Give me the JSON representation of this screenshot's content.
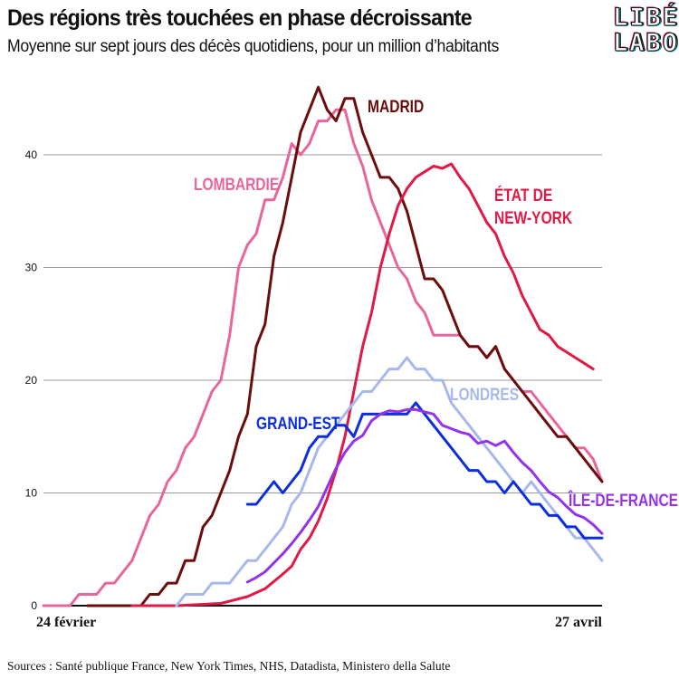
{
  "header": {
    "title": "Des régions très touchées en phase décroissante",
    "subtitle": "Moyenne sur sept jours des décès quotidiens, pour un million d’habitants"
  },
  "logo": {
    "line1": "LIBÉ",
    "line2": "LABO"
  },
  "footer": {
    "sources": "Sources : Santé publique France, New York Times, NHS, Datadista, Ministero della Salute"
  },
  "chart_data": {
    "type": "line",
    "title": "Des régions très touchées en phase décroissante",
    "subtitle": "Moyenne sur sept jours des décès quotidiens, pour un million d’habitants",
    "x_ticks": [
      {
        "day": 0,
        "label": "24 février"
      },
      {
        "day": 63,
        "label": "27 avril"
      }
    ],
    "y_ticks": [
      0,
      10,
      20,
      30,
      40
    ],
    "xlim": [
      0,
      63
    ],
    "ylim": [
      0,
      46
    ],
    "grid": true,
    "series": [
      {
        "name": "LOMBARDIE",
        "color": "#e8669c",
        "points": [
          [
            0,
            0
          ],
          [
            3,
            0
          ],
          [
            4,
            1
          ],
          [
            6,
            1
          ],
          [
            7,
            2
          ],
          [
            8,
            2
          ],
          [
            9,
            3
          ],
          [
            10,
            4
          ],
          [
            11,
            6
          ],
          [
            12,
            8
          ],
          [
            13,
            9
          ],
          [
            14,
            11
          ],
          [
            15,
            12
          ],
          [
            16,
            14
          ],
          [
            17,
            15
          ],
          [
            18,
            17
          ],
          [
            19,
            19
          ],
          [
            20,
            20
          ],
          [
            21,
            24
          ],
          [
            22,
            30
          ],
          [
            23,
            32
          ],
          [
            24,
            33
          ],
          [
            25,
            36
          ],
          [
            26,
            36
          ],
          [
            27,
            38
          ],
          [
            28,
            41
          ],
          [
            29,
            40
          ],
          [
            30,
            41
          ],
          [
            31,
            43
          ],
          [
            32,
            43
          ],
          [
            33,
            44
          ],
          [
            34,
            44
          ],
          [
            35,
            41
          ],
          [
            36,
            39
          ],
          [
            37,
            36
          ],
          [
            38,
            34
          ],
          [
            39,
            32
          ],
          [
            40,
            30
          ],
          [
            41,
            29
          ],
          [
            42,
            27
          ],
          [
            43,
            26
          ],
          [
            44,
            24
          ],
          [
            45,
            24
          ],
          [
            46,
            24
          ],
          [
            47,
            24
          ],
          [
            48,
            23
          ],
          [
            49,
            23
          ],
          [
            50,
            22
          ],
          [
            51,
            23
          ],
          [
            52,
            21
          ],
          [
            53,
            20
          ],
          [
            54,
            19
          ],
          [
            55,
            19
          ],
          [
            56,
            18
          ],
          [
            57,
            17
          ],
          [
            58,
            16
          ],
          [
            59,
            15
          ],
          [
            60,
            14
          ],
          [
            61,
            14
          ],
          [
            62,
            13
          ],
          [
            63,
            11
          ]
        ]
      },
      {
        "name": "MADRID",
        "color": "#6b0d0d",
        "points": [
          [
            5,
            0
          ],
          [
            11,
            0
          ],
          [
            12,
            1
          ],
          [
            13,
            1
          ],
          [
            14,
            2
          ],
          [
            15,
            2
          ],
          [
            16,
            4
          ],
          [
            17,
            4
          ],
          [
            18,
            7
          ],
          [
            19,
            8
          ],
          [
            20,
            10
          ],
          [
            21,
            12
          ],
          [
            22,
            15
          ],
          [
            23,
            17
          ],
          [
            24,
            23
          ],
          [
            25,
            25
          ],
          [
            26,
            31
          ],
          [
            27,
            34
          ],
          [
            28,
            38
          ],
          [
            29,
            42
          ],
          [
            30,
            44
          ],
          [
            31,
            46
          ],
          [
            32,
            44
          ],
          [
            33,
            43
          ],
          [
            34,
            45
          ],
          [
            35,
            45
          ],
          [
            36,
            42
          ],
          [
            37,
            40
          ],
          [
            38,
            38
          ],
          [
            39,
            38
          ],
          [
            40,
            37
          ],
          [
            41,
            35
          ],
          [
            42,
            32
          ],
          [
            43,
            29
          ],
          [
            44,
            29
          ],
          [
            45,
            28
          ],
          [
            46,
            26
          ],
          [
            47,
            24
          ],
          [
            48,
            23
          ],
          [
            49,
            23
          ],
          [
            50,
            22
          ],
          [
            51,
            23
          ],
          [
            52,
            21
          ],
          [
            53,
            20
          ],
          [
            54,
            19
          ],
          [
            55,
            18
          ],
          [
            56,
            17
          ],
          [
            57,
            16
          ],
          [
            58,
            15
          ],
          [
            59,
            15
          ],
          [
            60,
            14
          ],
          [
            61,
            13
          ],
          [
            62,
            12
          ],
          [
            63,
            11
          ]
        ]
      },
      {
        "name": "ÉTAT DE NEW-YORK",
        "color": "#e01a45",
        "points": [
          [
            10,
            0
          ],
          [
            15,
            0
          ],
          [
            20,
            0.2
          ],
          [
            23,
            0.8
          ],
          [
            25,
            1.5
          ],
          [
            27,
            2.8
          ],
          [
            28,
            3.5
          ],
          [
            29,
            5
          ],
          [
            30,
            6
          ],
          [
            31,
            7.5
          ],
          [
            32,
            9.5
          ],
          [
            33,
            12
          ],
          [
            34,
            15
          ],
          [
            35,
            19
          ],
          [
            36,
            23
          ],
          [
            37,
            26
          ],
          [
            38,
            30
          ],
          [
            39,
            33
          ],
          [
            40,
            35.5
          ],
          [
            41,
            37
          ],
          [
            42,
            38
          ],
          [
            43,
            38.5
          ],
          [
            44,
            39
          ],
          [
            45,
            38.8
          ],
          [
            46,
            39.2
          ],
          [
            47,
            38
          ],
          [
            48,
            37
          ],
          [
            49,
            35.5
          ],
          [
            50,
            34
          ],
          [
            51,
            33
          ],
          [
            52,
            31
          ],
          [
            53,
            29.5
          ],
          [
            54,
            27.5
          ],
          [
            55,
            26
          ],
          [
            56,
            24.5
          ],
          [
            57,
            24
          ],
          [
            58,
            23
          ],
          [
            59,
            22.5
          ],
          [
            60,
            22
          ],
          [
            61,
            21.5
          ],
          [
            62,
            21
          ]
        ]
      },
      {
        "name": "LONDRES",
        "color": "#a7b8ec",
        "points": [
          [
            15,
            0
          ],
          [
            16,
            1
          ],
          [
            17,
            1
          ],
          [
            18,
            1
          ],
          [
            19,
            2
          ],
          [
            20,
            2
          ],
          [
            21,
            2
          ],
          [
            22,
            3
          ],
          [
            23,
            4
          ],
          [
            24,
            4
          ],
          [
            25,
            5
          ],
          [
            26,
            6
          ],
          [
            27,
            7
          ],
          [
            28,
            9
          ],
          [
            29,
            10
          ],
          [
            30,
            12
          ],
          [
            31,
            14
          ],
          [
            32,
            15
          ],
          [
            33,
            16
          ],
          [
            34,
            17
          ],
          [
            35,
            18
          ],
          [
            36,
            19
          ],
          [
            37,
            19
          ],
          [
            38,
            20
          ],
          [
            39,
            21
          ],
          [
            40,
            21
          ],
          [
            41,
            22
          ],
          [
            42,
            21
          ],
          [
            43,
            21
          ],
          [
            44,
            20
          ],
          [
            45,
            20
          ],
          [
            46,
            18
          ],
          [
            47,
            17
          ],
          [
            48,
            16
          ],
          [
            49,
            15
          ],
          [
            50,
            14
          ],
          [
            51,
            13
          ],
          [
            52,
            12
          ],
          [
            53,
            11
          ],
          [
            54,
            10
          ],
          [
            55,
            11
          ],
          [
            56,
            10
          ],
          [
            57,
            9
          ],
          [
            58,
            8
          ],
          [
            59,
            7
          ],
          [
            60,
            6
          ],
          [
            61,
            6
          ],
          [
            62,
            5
          ],
          [
            63,
            4
          ]
        ]
      },
      {
        "name": "GRAND-EST",
        "color": "#0a2ee0",
        "points": [
          [
            23,
            9
          ],
          [
            24,
            9
          ],
          [
            25,
            10
          ],
          [
            26,
            11
          ],
          [
            27,
            10
          ],
          [
            28,
            11
          ],
          [
            29,
            12
          ],
          [
            30,
            14
          ],
          [
            31,
            15
          ],
          [
            32,
            15
          ],
          [
            33,
            16
          ],
          [
            34,
            16
          ],
          [
            35,
            15
          ],
          [
            36,
            17
          ],
          [
            37,
            17
          ],
          [
            38,
            17
          ],
          [
            39,
            17
          ],
          [
            40,
            17
          ],
          [
            41,
            17
          ],
          [
            42,
            18
          ],
          [
            43,
            17
          ],
          [
            44,
            16
          ],
          [
            45,
            15
          ],
          [
            46,
            14
          ],
          [
            47,
            13
          ],
          [
            48,
            12
          ],
          [
            49,
            12
          ],
          [
            50,
            11
          ],
          [
            51,
            11
          ],
          [
            52,
            10
          ],
          [
            53,
            11
          ],
          [
            54,
            10
          ],
          [
            55,
            9
          ],
          [
            56,
            9
          ],
          [
            57,
            8
          ],
          [
            58,
            8
          ],
          [
            59,
            7
          ],
          [
            60,
            7
          ],
          [
            61,
            6
          ],
          [
            62,
            6
          ],
          [
            63,
            6
          ]
        ]
      },
      {
        "name": "ÎLE-DE-FRANCE",
        "color": "#9333ea",
        "points": [
          [
            23,
            2.1
          ],
          [
            24,
            2.5
          ],
          [
            25,
            3
          ],
          [
            26,
            3.8
          ],
          [
            27,
            4.6
          ],
          [
            28,
            5.5
          ],
          [
            29,
            6.5
          ],
          [
            30,
            7.6
          ],
          [
            31,
            8.8
          ],
          [
            32,
            10.5
          ],
          [
            33,
            12.2
          ],
          [
            34,
            13.6
          ],
          [
            35,
            14.6
          ],
          [
            36,
            15.1
          ],
          [
            37,
            16.4
          ],
          [
            38,
            17
          ],
          [
            39,
            17.3
          ],
          [
            40,
            17.2
          ],
          [
            41,
            17.4
          ],
          [
            42,
            17.4
          ],
          [
            43,
            17.2
          ],
          [
            44,
            17
          ],
          [
            45,
            16
          ],
          [
            46,
            15.7
          ],
          [
            47,
            15.4
          ],
          [
            48,
            15.2
          ],
          [
            49,
            14.4
          ],
          [
            50,
            14.6
          ],
          [
            51,
            14.2
          ],
          [
            52,
            14.6
          ],
          [
            53,
            13.6
          ],
          [
            54,
            12.7
          ],
          [
            55,
            12
          ],
          [
            56,
            11
          ],
          [
            57,
            10.1
          ],
          [
            58,
            9.6
          ],
          [
            59,
            8.8
          ],
          [
            60,
            8.1
          ],
          [
            61,
            7.8
          ],
          [
            62,
            7.2
          ],
          [
            63,
            6.4
          ]
        ]
      }
    ],
    "labels": [
      {
        "series": "LOMBARDIE",
        "lines": [
          "LOMBARDIE"
        ]
      },
      {
        "series": "MADRID",
        "lines": [
          "MADRID"
        ]
      },
      {
        "series": "ÉTAT DE NEW-YORK",
        "lines": [
          "ÉTAT DE",
          "NEW-YORK"
        ]
      },
      {
        "series": "LONDRES",
        "lines": [
          "LONDRES"
        ]
      },
      {
        "series": "GRAND-EST",
        "lines": [
          "GRAND-EST"
        ]
      },
      {
        "series": "ÎLE-DE-FRANCE",
        "lines": [
          "ÎLE-DE-FRANCE"
        ]
      }
    ]
  }
}
